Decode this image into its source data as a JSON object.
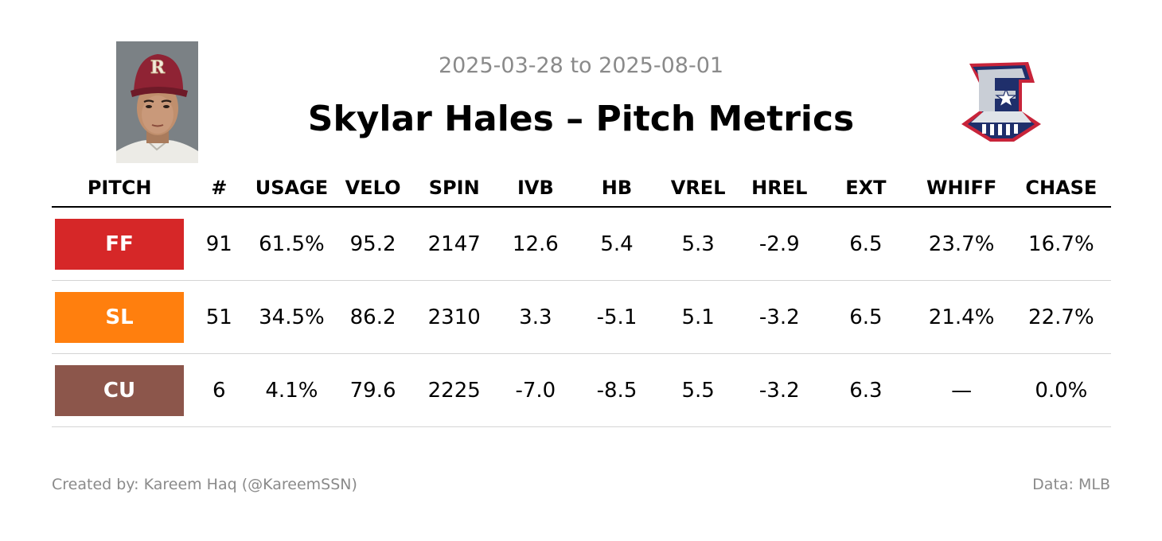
{
  "header": {
    "date_range": "2025-03-28 to 2025-08-01",
    "title": "Skylar Hales – Pitch Metrics"
  },
  "images": {
    "headshot": "player-headshot",
    "team_logo": "team-logo-e-star"
  },
  "chart_data": {
    "type": "table",
    "columns": [
      "PITCH",
      "#",
      "USAGE",
      "VELO",
      "SPIN",
      "IVB",
      "HB",
      "VREL",
      "HREL",
      "EXT",
      "WHIFF",
      "CHASE"
    ],
    "rows": [
      {
        "pitch": "FF",
        "color": "#d62728",
        "count": "91",
        "usage": "61.5%",
        "velo": "95.2",
        "spin": "2147",
        "ivb": "12.6",
        "hb": "5.4",
        "vrel": "5.3",
        "hrel": "-2.9",
        "ext": "6.5",
        "whiff": "23.7%",
        "chase": "16.7%"
      },
      {
        "pitch": "SL",
        "color": "#ff7f0e",
        "count": "51",
        "usage": "34.5%",
        "velo": "86.2",
        "spin": "2310",
        "ivb": "3.3",
        "hb": "-5.1",
        "vrel": "5.1",
        "hrel": "-3.2",
        "ext": "6.5",
        "whiff": "21.4%",
        "chase": "22.7%"
      },
      {
        "pitch": "CU",
        "color": "#8c564b",
        "count": "6",
        "usage": "4.1%",
        "velo": "79.6",
        "spin": "2225",
        "ivb": "-7.0",
        "hb": "-8.5",
        "vrel": "5.5",
        "hrel": "-3.2",
        "ext": "6.3",
        "whiff": "—",
        "chase": "0.0%"
      }
    ]
  },
  "footer": {
    "credit": "Created by: Kareem Haq (@KareemSSN)",
    "source": "Data: MLB"
  }
}
